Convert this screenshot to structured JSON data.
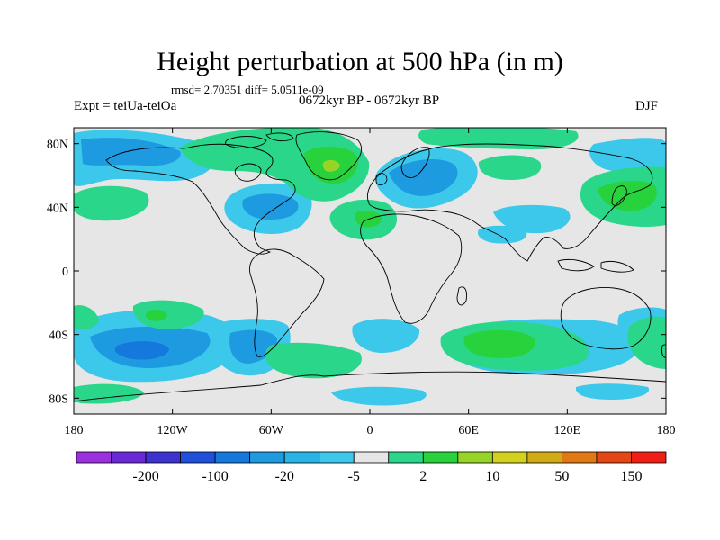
{
  "title": "Height perturbation at 500 hPa (in m)",
  "stats_line": "rmsd= 2.70351 diff= 5.0511e-09",
  "left_label": "Expt = teiUa-teiOa",
  "center_label": "0672kyr BP - 0672kyr BP",
  "right_label": "DJF",
  "map": {
    "projection": "cylindrical equidistant",
    "lon_range": [
      -180,
      180
    ],
    "lat_range": [
      -90,
      90
    ],
    "background_color": "#e6e6e6",
    "x_ticks": [
      {
        "lon": -180,
        "label": "180"
      },
      {
        "lon": -120,
        "label": "120W"
      },
      {
        "lon": -60,
        "label": "60W"
      },
      {
        "lon": 0,
        "label": "0"
      },
      {
        "lon": 60,
        "label": "60E"
      },
      {
        "lon": 120,
        "label": "120E"
      },
      {
        "lon": 180,
        "label": "180"
      }
    ],
    "y_ticks": [
      {
        "lat": 80,
        "label": "80N"
      },
      {
        "lat": 40,
        "label": "40N"
      },
      {
        "lat": 0,
        "label": "0"
      },
      {
        "lat": -40,
        "label": "40S"
      },
      {
        "lat": -80,
        "label": "80S"
      }
    ]
  },
  "colorbar": {
    "colors": [
      "#9b30e0",
      "#6a28d8",
      "#3c32d0",
      "#1e50dc",
      "#1478dc",
      "#1e9ae0",
      "#28b4e6",
      "#3cc8ea",
      "#e6e6e6",
      "#2ad68a",
      "#28d23c",
      "#96d428",
      "#d2d21e",
      "#d2aa14",
      "#e07814",
      "#e64614",
      "#f01e14"
    ],
    "labels": [
      {
        "after_index": 1,
        "text": "-200"
      },
      {
        "after_index": 3,
        "text": "-100"
      },
      {
        "after_index": 5,
        "text": "-20"
      },
      {
        "after_index": 7,
        "text": "-5"
      },
      {
        "after_index": 9,
        "text": "2"
      },
      {
        "after_index": 11,
        "text": "10"
      },
      {
        "after_index": 13,
        "text": "50"
      },
      {
        "after_index": 15,
        "text": "150"
      }
    ]
  },
  "field_anomalies": [
    {
      "lon": -150,
      "lat": 70,
      "level": 6,
      "label": "North Pacific/Alaska low"
    },
    {
      "lon": -80,
      "lat": 40,
      "level": 6,
      "label": "Eastern North America low"
    },
    {
      "lon": 50,
      "lat": 58,
      "level": 6,
      "label": "Northern Eurasia low"
    },
    {
      "lon": 20,
      "lat": 65,
      "level": 7,
      "label": "Scandinavia low"
    },
    {
      "lon": -25,
      "lat": 60,
      "level": 10,
      "label": "North Atlantic high"
    },
    {
      "lon": -20,
      "lat": 30,
      "level": 10,
      "label": "Subtropical Atlantic high"
    },
    {
      "lon": 150,
      "lat": 45,
      "level": 10,
      "label": "NW Pacific high"
    },
    {
      "lon": -70,
      "lat": 68,
      "level": 9,
      "label": "Arctic Canada high"
    },
    {
      "lon": -150,
      "lat": -50,
      "level": 5,
      "label": "South Pacific low"
    },
    {
      "lon": -75,
      "lat": -50,
      "level": 6,
      "label": "South America low"
    },
    {
      "lon": 60,
      "lat": -45,
      "level": 10,
      "label": "South Indian Ocean high"
    },
    {
      "lon": -120,
      "lat": -30,
      "level": 10,
      "label": "Subtropical South Pacific high"
    }
  ]
}
